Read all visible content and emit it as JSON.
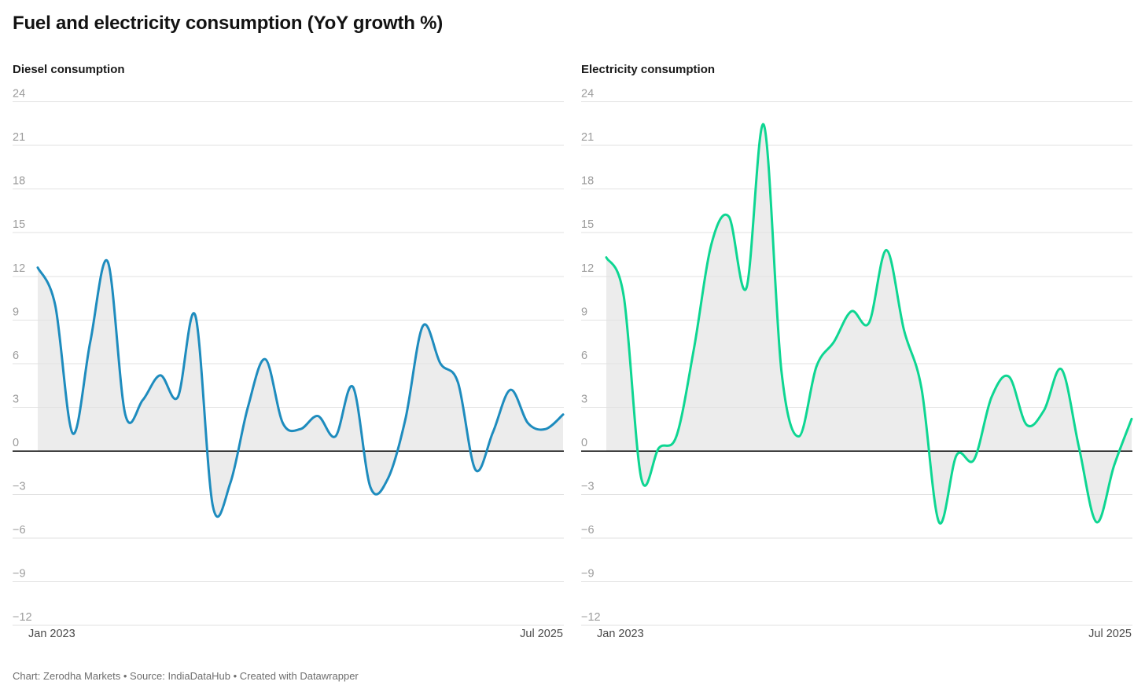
{
  "header": {
    "title": "Fuel and electricity consumption (YoY growth %)"
  },
  "footer": {
    "text": "Chart: Zerodha Markets • Source: IndiaDataHub • Created with Datawrapper"
  },
  "colors": {
    "diesel_line": "#1e8cbe",
    "electricity_line": "#0ed692",
    "area_fill": "#ececec",
    "gridline": "#e2e2e2",
    "zero_line": "#000000",
    "tick_label": "#9b9b9b",
    "axis_label": "#494949"
  },
  "x_axis": {
    "start_label": "Jan 2023",
    "end_label": "Jul 2025"
  },
  "y_ticks": [
    {
      "v": 24,
      "label": "24"
    },
    {
      "v": 21,
      "label": "21"
    },
    {
      "v": 18,
      "label": "18"
    },
    {
      "v": 15,
      "label": "15"
    },
    {
      "v": 12,
      "label": "12"
    },
    {
      "v": 9,
      "label": "9"
    },
    {
      "v": 6,
      "label": "6"
    },
    {
      "v": 3,
      "label": "3"
    },
    {
      "v": 0,
      "label": "0"
    },
    {
      "v": -3,
      "label": "−3"
    },
    {
      "v": -6,
      "label": "−6"
    },
    {
      "v": -9,
      "label": "−9"
    },
    {
      "v": -12,
      "label": "−12"
    }
  ],
  "chart_data": [
    {
      "type": "line",
      "title": "Diesel consumption",
      "unit": "YoY growth %",
      "line_color_key": "diesel_line",
      "grid": true,
      "area_fill": true,
      "legend_position": "none",
      "ylim": [
        -12,
        24
      ],
      "x_range": [
        "Jan 2023",
        "Jul 2025"
      ],
      "x": [
        "Jan 2023",
        "Feb 2023",
        "Mar 2023",
        "Apr 2023",
        "May 2023",
        "Jun 2023",
        "Jul 2023",
        "Aug 2023",
        "Sep 2023",
        "Oct 2023",
        "Nov 2023",
        "Dec 2023",
        "Jan 2024",
        "Feb 2024",
        "Mar 2024",
        "Apr 2024",
        "May 2024",
        "Jun 2024",
        "Jul 2024",
        "Aug 2024",
        "Sep 2024",
        "Oct 2024",
        "Nov 2024",
        "Dec 2024",
        "Jan 2025",
        "Feb 2025",
        "Mar 2025",
        "Apr 2025",
        "May 2025",
        "Jun 2025",
        "Jul 2025"
      ],
      "values": [
        12.6,
        10.0,
        1.2,
        7.5,
        13.0,
        2.5,
        3.5,
        5.2,
        3.7,
        9.3,
        -3.8,
        -2.2,
        3.0,
        6.3,
        1.9,
        1.5,
        2.4,
        1.0,
        4.4,
        -2.5,
        -1.9,
        2.2,
        8.6,
        6.0,
        4.7,
        -1.3,
        1.3,
        4.2,
        1.9,
        1.5,
        2.5
      ]
    },
    {
      "type": "line",
      "title": "Electricity consumption",
      "unit": "YoY growth %",
      "line_color_key": "electricity_line",
      "grid": true,
      "area_fill": true,
      "legend_position": "none",
      "ylim": [
        -12,
        24
      ],
      "x_range": [
        "Jan 2023",
        "Jul 2025"
      ],
      "x": [
        "Jan 2023",
        "Feb 2023",
        "Mar 2023",
        "Apr 2023",
        "May 2023",
        "Jun 2023",
        "Jul 2023",
        "Aug 2023",
        "Sep 2023",
        "Oct 2023",
        "Nov 2023",
        "Dec 2023",
        "Jan 2024",
        "Feb 2024",
        "Mar 2024",
        "Apr 2024",
        "May 2024",
        "Jun 2024",
        "Jul 2024",
        "Aug 2024",
        "Sep 2024",
        "Oct 2024",
        "Nov 2024",
        "Dec 2024",
        "Jan 2025",
        "Feb 2025",
        "Mar 2025",
        "Apr 2025",
        "May 2025",
        "Jun 2025",
        "Jul 2025"
      ],
      "values": [
        13.3,
        10.6,
        -1.9,
        0.2,
        1.0,
        7.0,
        14.2,
        16.1,
        11.2,
        22.4,
        5.5,
        1.0,
        5.8,
        7.5,
        9.6,
        8.8,
        13.8,
        8.3,
        4.3,
        -4.9,
        -0.3,
        -0.6,
        3.7,
        5.1,
        1.8,
        2.8,
        5.6,
        0.2,
        -4.9,
        -1.0,
        2.2
      ]
    }
  ]
}
